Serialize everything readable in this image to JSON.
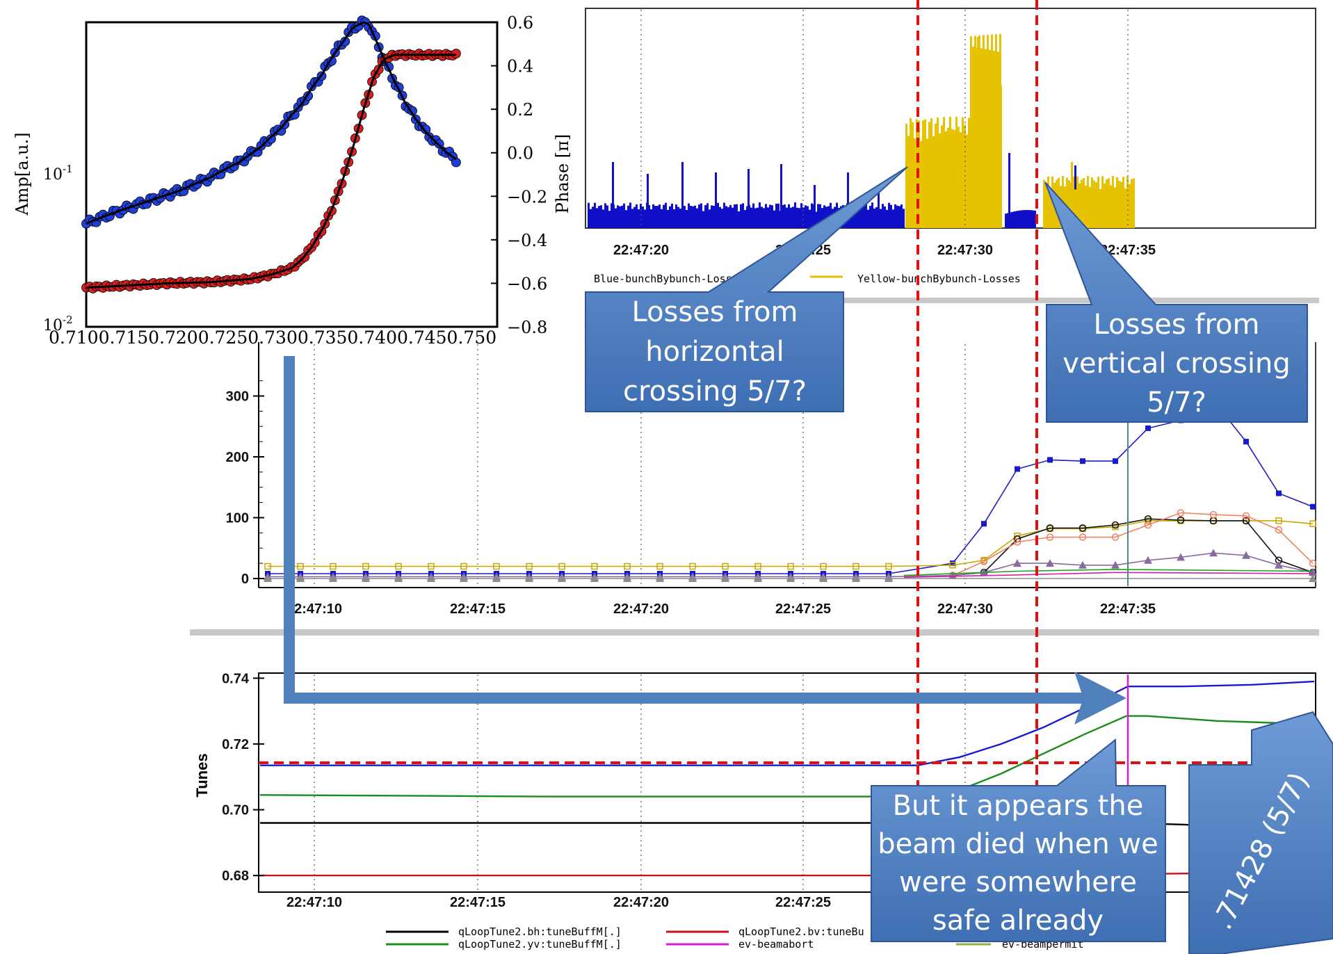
{
  "chart_data": [
    {
      "id": "bpm-response",
      "type": "scatter",
      "ylabel": "Amp[a.u.]",
      "y2label": "Phase [π]",
      "xlim": [
        0.71,
        0.75
      ],
      "ylim_log": [
        0.01,
        0.6
      ],
      "y2lim": [
        -0.8,
        0.6
      ],
      "x_tick_text": "0.7100.7150.7200.7250.7300.7350.7400.7450.750",
      "y_tick_labels": [
        "10^-1",
        "10^-2"
      ],
      "y2_tick_labels": [
        "0.6",
        "0.4",
        "0.2",
        "0.0",
        "−0.2",
        "−0.4",
        "−0.6",
        "−0.8"
      ],
      "series": [
        {
          "color": "#1f3fd6",
          "x": [
            0.71,
            0.713,
            0.716,
            0.719,
            0.722,
            0.725,
            0.727,
            0.729,
            0.731,
            0.733,
            0.735,
            0.736,
            0.737,
            0.7375,
            0.738,
            0.739,
            0.74,
            0.741,
            0.742,
            0.743,
            0.744,
            0.745,
            0.746
          ],
          "y": [
            0.04,
            0.047,
            0.054,
            0.062,
            0.074,
            0.092,
            0.112,
            0.145,
            0.2,
            0.3,
            0.46,
            0.56,
            0.6,
            0.585,
            0.5,
            0.36,
            0.27,
            0.205,
            0.165,
            0.138,
            0.12,
            0.105,
            0.095
          ]
        },
        {
          "color": "#d62020",
          "x": [
            0.71,
            0.714,
            0.718,
            0.722,
            0.726,
            0.728,
            0.73,
            0.731,
            0.732,
            0.733,
            0.734,
            0.735,
            0.736,
            0.737,
            0.738,
            0.739,
            0.74,
            0.742,
            0.744,
            0.746
          ],
          "y2": [
            -0.62,
            -0.61,
            -0.6,
            -0.595,
            -0.58,
            -0.56,
            -0.53,
            -0.49,
            -0.43,
            -0.35,
            -0.25,
            -0.12,
            0.03,
            0.2,
            0.35,
            0.43,
            0.45,
            0.45,
            0.45,
            0.45
          ]
        }
      ]
    },
    {
      "id": "bunch-losses",
      "type": "bar",
      "x_tick_labels": [
        "22:47:20",
        "22:47:25",
        "22:47:30",
        "22:47:35"
      ],
      "legend": [
        "Blue-bunchBybunch-Losses",
        "Yellow-bunchBybunch-Losses"
      ],
      "colors": {
        "blue": "#1010c8",
        "yellow": "#e6c200"
      }
    },
    {
      "id": "loss-monitors",
      "type": "line",
      "x_tick_labels": [
        "22:47:10",
        "22:47:15",
        "22:47:20",
        "22:47:25",
        "22:47:30",
        "22:47:35"
      ],
      "y_tick_labels": [
        "300",
        "200",
        "100",
        "0"
      ],
      "ylim": [
        0,
        350
      ]
    },
    {
      "id": "tunes",
      "type": "line",
      "ylabel": "Tunes",
      "ylim": [
        0.67,
        0.745
      ],
      "x_tick_labels": [
        "22:47:10",
        "22:47:15",
        "22:47:20",
        "22:47:25"
      ],
      "y_tick_labels": [
        "0.74",
        "0.72",
        "0.70",
        "0.68"
      ],
      "legend": [
        "qLoopTune2.bh:tuneBuffM[.]",
        "qLoopTune2.yv:tuneBuffM[.]",
        "qLoopTune2.bv:tuneBu",
        "ev-beamabort",
        "ev-beampermit"
      ],
      "resonance_line": 0.71428
    }
  ],
  "annotations": {
    "horizontal": [
      "Losses from",
      "horizontal",
      "crossing 5/7?"
    ],
    "vertical": [
      "Losses from",
      "vertical crossing",
      "5/7?"
    ],
    "died": [
      "But it appears the",
      "beam died when we",
      "were somewhere",
      "safe already"
    ],
    "resonance": ".71428 (5/7)"
  },
  "colors": {
    "callout_fill": "#4f81bd",
    "callout_edge": "#2f5597",
    "resonance_dash": "#e01010",
    "arrow": "#4f81bd"
  }
}
